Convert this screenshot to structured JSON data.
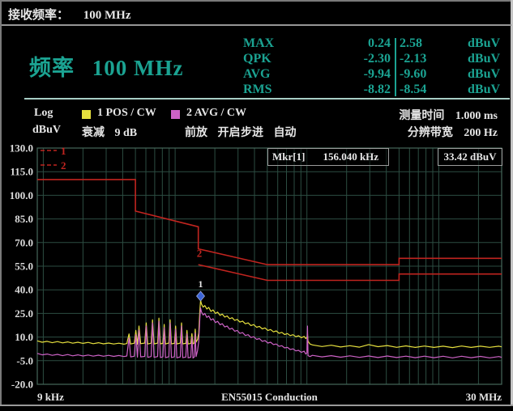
{
  "top_bar": {
    "label": "接收频率：",
    "value": "100 MHz"
  },
  "header": {
    "frequency_label": "频率",
    "frequency_value": "100 MHz",
    "detectors": {
      "rows": [
        {
          "name": "MAX",
          "v1": "0.24",
          "v2": "2.58",
          "unit": "dBuV"
        },
        {
          "name": "QPK",
          "v1": "-2.30",
          "v2": "-2.13",
          "unit": "dBuV"
        },
        {
          "name": "AVG",
          "v1": "-9.94",
          "v2": "-9.60",
          "unit": "dBuV"
        },
        {
          "name": "RMS",
          "v1": "-8.82",
          "v2": "-8.54",
          "unit": "dBuV"
        }
      ]
    }
  },
  "settings": {
    "scale": "Log",
    "unit": "dBuV",
    "trace1": "1 POS / CW",
    "trace2": "2 AVG / CW",
    "meas_time_label": "测量时间",
    "meas_time_value": "1.000 ms",
    "atten_label": "衰减",
    "atten_value": "9 dB",
    "preamp_label": "前放",
    "preamp_value": "开启",
    "step_label": "步进",
    "step_value": "自动",
    "rbw_label": "分辨带宽",
    "rbw_value": "200 Hz"
  },
  "marker_readout": {
    "name": "Mkr[1]",
    "freq": "156.040 kHz",
    "level": "33.42 dBuV"
  },
  "colors": {
    "teal": "#1ba392",
    "yellow": "#e6e03e",
    "magenta": "#cd62c6",
    "red": "#c0241f",
    "grid": "#2c4d42",
    "plot_border": "#45685b",
    "tick_text": "#dcdcdc",
    "marker_blue": "#3b63d6"
  },
  "chart_data": {
    "type": "line",
    "x_scale": "log",
    "x_range_kHz": [
      9,
      30000
    ],
    "x_start_label": "9 kHz",
    "x_center_label": "EN55015 Conduction",
    "x_end_label": "30 MHz",
    "y_unit": "dBuV",
    "y_ticks": [
      130,
      115,
      100,
      85,
      70,
      55,
      40,
      25,
      10,
      -5,
      -20
    ],
    "grid": true,
    "limit_legend": [
      "1",
      "2"
    ],
    "limit1_points": [
      [
        9,
        110
      ],
      [
        50,
        110
      ],
      [
        50,
        90
      ],
      [
        150,
        80
      ],
      [
        150,
        66
      ],
      [
        500,
        56
      ],
      [
        5000,
        56
      ],
      [
        5000,
        60
      ],
      [
        30000,
        60
      ]
    ],
    "limit2_points": [
      [
        150,
        56
      ],
      [
        500,
        46
      ],
      [
        5000,
        46
      ],
      [
        5000,
        50
      ],
      [
        30000,
        50
      ]
    ],
    "limit2_label": {
      "text": "2",
      "kHz": 150,
      "dB": 61
    },
    "marker_point": {
      "kHz": 156.04,
      "dB": 33.42,
      "label": "1"
    },
    "series": [
      {
        "name": "1 POS / CW",
        "color_key": "yellow",
        "points": [
          [
            9,
            7.6
          ],
          [
            9.8,
            6.7
          ],
          [
            10.7,
            7.3
          ],
          [
            11.7,
            6.4
          ],
          [
            12.8,
            7.1
          ],
          [
            14,
            6.3
          ],
          [
            15.3,
            6.9
          ],
          [
            16.7,
            6.1
          ],
          [
            18.3,
            6.7
          ],
          [
            20,
            6.0
          ],
          [
            21.9,
            6.6
          ],
          [
            23.9,
            5.8
          ],
          [
            26.2,
            6.4
          ],
          [
            28.6,
            5.7
          ],
          [
            31.3,
            6.2
          ],
          [
            34.2,
            5.6
          ],
          [
            37.4,
            6.1
          ],
          [
            40.9,
            5.5
          ],
          [
            43,
            5.9
          ],
          [
            44.7,
            12
          ],
          [
            46,
            5.6
          ],
          [
            49,
            6.1
          ],
          [
            50.3,
            14.2
          ],
          [
            51.8,
            5.5
          ],
          [
            53.2,
            17
          ],
          [
            54.8,
            5.8
          ],
          [
            58.8,
            6.2
          ],
          [
            60.3,
            19
          ],
          [
            62,
            5.6
          ],
          [
            65.8,
            6.1
          ],
          [
            67.4,
            21
          ],
          [
            69.2,
            5.6
          ],
          [
            73.7,
            6.2
          ],
          [
            75.4,
            22
          ],
          [
            77.3,
            5.7
          ],
          [
            80.8,
            6.0
          ],
          [
            82.6,
            18
          ],
          [
            84.5,
            5.6
          ],
          [
            89.6,
            6.2
          ],
          [
            91.6,
            21
          ],
          [
            93.7,
            5.7
          ],
          [
            98.7,
            6.0
          ],
          [
            100.9,
            17
          ],
          [
            103,
            5.6
          ],
          [
            109.5,
            6.2
          ],
          [
            111.8,
            19
          ],
          [
            114.2,
            5.7
          ],
          [
            120.5,
            6.0
          ],
          [
            122.9,
            14.2
          ],
          [
            125.4,
            5.6
          ],
          [
            131.5,
            6.0
          ],
          [
            134,
            12.2
          ],
          [
            136.6,
            5.7
          ],
          [
            139.8,
            6.3
          ],
          [
            142,
            15
          ],
          [
            144.4,
            6.8
          ],
          [
            148,
            8.5
          ],
          [
            151,
            12.5
          ],
          [
            154,
            27
          ],
          [
            156,
            33.4
          ],
          [
            158.5,
            31
          ],
          [
            163,
            29
          ],
          [
            168,
            30
          ],
          [
            174,
            27.8
          ],
          [
            180,
            28.8
          ],
          [
            187,
            26.3
          ],
          [
            194,
            27.2
          ],
          [
            202,
            25
          ],
          [
            210,
            25.8
          ],
          [
            219,
            23.8
          ],
          [
            228,
            24.6
          ],
          [
            238,
            22.7
          ],
          [
            248,
            23.4
          ],
          [
            259,
            21.6
          ],
          [
            271,
            22.3
          ],
          [
            283,
            20.6
          ],
          [
            296,
            21.2
          ],
          [
            310,
            19.5
          ],
          [
            325,
            20.1
          ],
          [
            341,
            18.4
          ],
          [
            358,
            19
          ],
          [
            376,
            17.3
          ],
          [
            395,
            17.9
          ],
          [
            415,
            16.2
          ],
          [
            436,
            16.8
          ],
          [
            458,
            15.2
          ],
          [
            481,
            15.8
          ],
          [
            505,
            14.2
          ],
          [
            530,
            14.8
          ],
          [
            557,
            13.3
          ],
          [
            585,
            13.9
          ],
          [
            614,
            12.4
          ],
          [
            645,
            13
          ],
          [
            677,
            11.6
          ],
          [
            711,
            12.2
          ],
          [
            747,
            10.9
          ],
          [
            784,
            11.5
          ],
          [
            823,
            10.2
          ],
          [
            864,
            10.8
          ],
          [
            907,
            9.6
          ],
          [
            952,
            10.4
          ],
          [
            980,
            9
          ],
          [
            1000,
            9.8
          ],
          [
            1010,
            12
          ],
          [
            1020,
            7.4
          ],
          [
            1055,
            5.6
          ],
          [
            1100,
            5.0
          ],
          [
            1300,
            4.0
          ],
          [
            1530,
            4.8
          ],
          [
            1800,
            3.7
          ],
          [
            2120,
            4.5
          ],
          [
            2500,
            3.6
          ],
          [
            2940,
            5.2
          ],
          [
            3460,
            3.9
          ],
          [
            4070,
            4.6
          ],
          [
            4790,
            3.5
          ],
          [
            5640,
            4.4
          ],
          [
            6630,
            3.4
          ],
          [
            7800,
            4.3
          ],
          [
            9180,
            3.4
          ],
          [
            10800,
            4.2
          ],
          [
            12700,
            3.3
          ],
          [
            14900,
            4.3
          ],
          [
            17600,
            3.4
          ],
          [
            20700,
            4.2
          ],
          [
            24300,
            3.5
          ],
          [
            28600,
            4.2
          ],
          [
            30000,
            3.8
          ]
        ]
      },
      {
        "name": "2 AVG / CW",
        "color_key": "magenta",
        "points": [
          [
            9,
            -0.4
          ],
          [
            9.8,
            -1.3
          ],
          [
            10.7,
            -0.8
          ],
          [
            11.7,
            -1.6
          ],
          [
            12.8,
            -1
          ],
          [
            14,
            -1.8
          ],
          [
            15.3,
            -1.1
          ],
          [
            16.7,
            -1.9
          ],
          [
            18.3,
            -1.3
          ],
          [
            20,
            -2
          ],
          [
            21.9,
            -1.4
          ],
          [
            23.9,
            -2.1
          ],
          [
            26.2,
            -1.5
          ],
          [
            28.6,
            -2.2
          ],
          [
            31.3,
            -1.6
          ],
          [
            34.2,
            -2.3
          ],
          [
            37.4,
            -1.7
          ],
          [
            40.9,
            -2.4
          ],
          [
            43,
            -2
          ],
          [
            44.7,
            9.5
          ],
          [
            46,
            -2.6
          ],
          [
            49,
            -2.2
          ],
          [
            50.3,
            11.5
          ],
          [
            51.8,
            -2.8
          ],
          [
            53.2,
            14.5
          ],
          [
            54.8,
            -2.6
          ],
          [
            58.8,
            -2.3
          ],
          [
            60.3,
            17
          ],
          [
            62,
            -2.9
          ],
          [
            65.8,
            -2.4
          ],
          [
            67.4,
            19
          ],
          [
            69.2,
            -2.9
          ],
          [
            73.7,
            -2.4
          ],
          [
            75.4,
            20
          ],
          [
            77.3,
            -3
          ],
          [
            80.8,
            -2.6
          ],
          [
            82.6,
            16
          ],
          [
            84.5,
            -3.1
          ],
          [
            89.6,
            -2.5
          ],
          [
            91.6,
            19
          ],
          [
            93.7,
            -3
          ],
          [
            98.7,
            -2.6
          ],
          [
            100.9,
            15
          ],
          [
            103,
            -3.2
          ],
          [
            109.5,
            -2.6
          ],
          [
            111.8,
            17
          ],
          [
            114.2,
            -3.1
          ],
          [
            120.5,
            -2.7
          ],
          [
            122.9,
            12
          ],
          [
            125.4,
            -3.2
          ],
          [
            131.5,
            -2.8
          ],
          [
            134,
            10
          ],
          [
            136.6,
            -3.3
          ],
          [
            139.8,
            -2.6
          ],
          [
            142,
            12.5
          ],
          [
            144.4,
            -2.4
          ],
          [
            148,
            1.5
          ],
          [
            151,
            7
          ],
          [
            154,
            22
          ],
          [
            156,
            28.5
          ],
          [
            158.5,
            26
          ],
          [
            163,
            24
          ],
          [
            168,
            25
          ],
          [
            174,
            22.5
          ],
          [
            180,
            23.4
          ],
          [
            187,
            20.8
          ],
          [
            194,
            21.6
          ],
          [
            202,
            19.2
          ],
          [
            210,
            20
          ],
          [
            219,
            17.8
          ],
          [
            228,
            18.5
          ],
          [
            238,
            16.4
          ],
          [
            248,
            17
          ],
          [
            259,
            15
          ],
          [
            271,
            15.6
          ],
          [
            283,
            13.7
          ],
          [
            296,
            14.2
          ],
          [
            310,
            12.3
          ],
          [
            325,
            12.8
          ],
          [
            341,
            11
          ],
          [
            358,
            11.5
          ],
          [
            376,
            9.7
          ],
          [
            395,
            10.2
          ],
          [
            415,
            8.5
          ],
          [
            436,
            9
          ],
          [
            458,
            7.3
          ],
          [
            481,
            7.8
          ],
          [
            505,
            6.2
          ],
          [
            530,
            6.7
          ],
          [
            557,
            5.2
          ],
          [
            585,
            5.6
          ],
          [
            614,
            4.1
          ],
          [
            645,
            4.5
          ],
          [
            677,
            3.1
          ],
          [
            711,
            3.5
          ],
          [
            747,
            2.1
          ],
          [
            784,
            2.5
          ],
          [
            823,
            1.2
          ],
          [
            864,
            1.6
          ],
          [
            907,
            0.3
          ],
          [
            952,
            1
          ],
          [
            980,
            -0.8
          ],
          [
            1000,
            0
          ],
          [
            1010,
            17
          ],
          [
            1020,
            -1.8
          ],
          [
            1055,
            -2.4
          ],
          [
            1100,
            -1.6
          ],
          [
            1300,
            -2.6
          ],
          [
            1530,
            -1.8
          ],
          [
            1800,
            -2.8
          ],
          [
            2120,
            -1.9
          ],
          [
            2500,
            -2.9
          ],
          [
            2940,
            -2
          ],
          [
            3460,
            -3
          ],
          [
            4070,
            -2
          ],
          [
            4790,
            -3
          ],
          [
            5640,
            -2.1
          ],
          [
            6630,
            -3.1
          ],
          [
            7800,
            -2.1
          ],
          [
            9180,
            -3.1
          ],
          [
            10800,
            -2.2
          ],
          [
            12700,
            -3.2
          ],
          [
            14900,
            -2.2
          ],
          [
            17600,
            -3.1
          ],
          [
            20700,
            -2.3
          ],
          [
            24300,
            -3.2
          ],
          [
            28600,
            -2.4
          ],
          [
            30000,
            -2.9
          ]
        ]
      }
    ]
  }
}
